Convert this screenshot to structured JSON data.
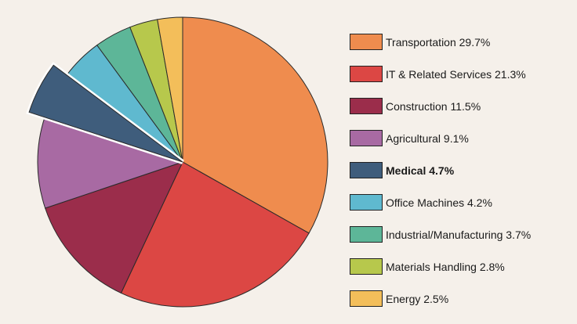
{
  "chart_data": {
    "type": "pie",
    "title": "",
    "start": "12 o'clock, clockwise",
    "highlighted": "Medical",
    "legend_position": "right",
    "slices": [
      {
        "label": "Transportation",
        "value": 29.7,
        "legend": "Transportation 29.7%",
        "color": "#ef8c4e"
      },
      {
        "label": "IT & Related Services",
        "value": 21.3,
        "legend": "IT & Related Services 21.3%",
        "color": "#dc4744"
      },
      {
        "label": "Construction",
        "value": 11.5,
        "legend": "Construction 11.5%",
        "color": "#9b2d4b"
      },
      {
        "label": "Agricultural",
        "value": 9.1,
        "legend": "Agricultural 9.1%",
        "color": "#a86aa3"
      },
      {
        "label": "Medical",
        "value": 4.7,
        "legend": "Medical 4.7%",
        "color": "#3f5d7c"
      },
      {
        "label": "Office Machines",
        "value": 4.2,
        "legend": "Office Machines 4.2%",
        "color": "#5fb9cf"
      },
      {
        "label": "Industrial/Manufacturing",
        "value": 3.7,
        "legend": "Industrial/Manufacturing 3.7%",
        "color": "#5db698"
      },
      {
        "label": "Materials Handling",
        "value": 2.8,
        "legend": "Materials Handling 2.8%",
        "color": "#b7c84c"
      },
      {
        "label": "Energy",
        "value": 2.5,
        "legend": "Energy 2.5%",
        "color": "#f3be5a"
      }
    ]
  }
}
